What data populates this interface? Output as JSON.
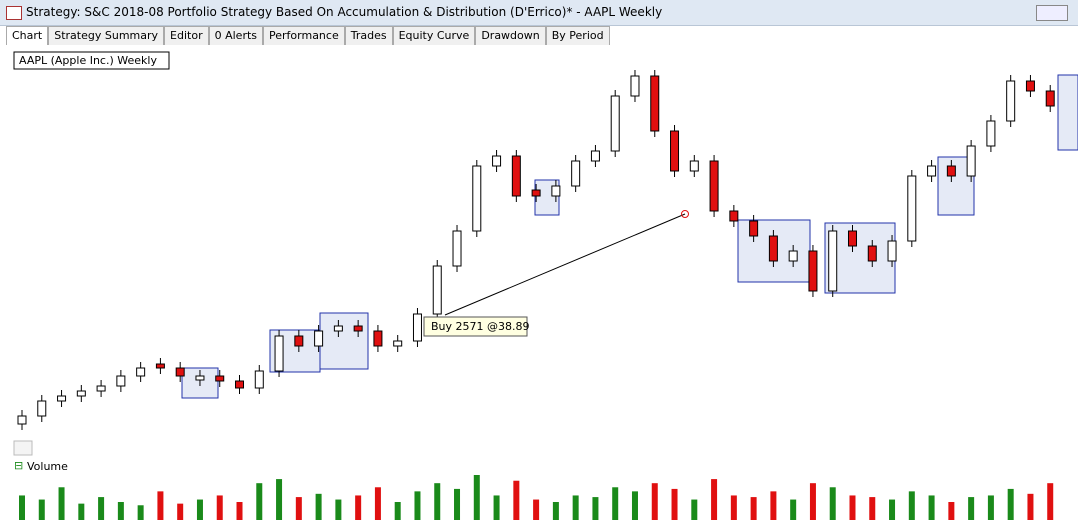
{
  "window": {
    "title": "Strategy: S&C 2018-08 Portfolio Strategy Based On Accumulation & Distribution (D'Errico)* - AAPL Weekly"
  },
  "tabs": [
    "Chart",
    "Strategy Summary",
    "Editor",
    "0 Alerts",
    "Performance",
    "Trades",
    "Equity Curve",
    "Drawdown",
    "By Period"
  ],
  "chart_data": [
    {
      "type": "candlestick",
      "title": "AAPL (Apple Inc.) Weekly",
      "annotation": "Buy 2571 @38.89",
      "up_color": "#ffffff",
      "down_color": "#e01010",
      "open": [
        27.6,
        28.4,
        29.9,
        30.4,
        30.9,
        31.4,
        32.4,
        33.6,
        33.2,
        32.0,
        32.4,
        31.9,
        31.2,
        32.9,
        36.4,
        35.4,
        36.9,
        37.4,
        36.9,
        35.4,
        35.9,
        38.6,
        43.4,
        46.9,
        53.4,
        54.4,
        51.0,
        50.4,
        51.4,
        53.9,
        54.9,
        60.4,
        62.4,
        56.9,
        52.9,
        53.9,
        48.9,
        47.9,
        46.4,
        43.9,
        44.9,
        40.9,
        46.9,
        45.4,
        43.9,
        45.9,
        52.4,
        53.4,
        52.4,
        55.4,
        57.9,
        61.9,
        60.9
      ],
      "high": [
        29.0,
        30.5,
        31.0,
        31.5,
        32.0,
        33.0,
        33.8,
        34.2,
        33.8,
        33.0,
        33.0,
        32.5,
        33.5,
        37.0,
        37.0,
        37.5,
        38.0,
        38.0,
        37.5,
        36.5,
        39.2,
        44.0,
        47.5,
        54.0,
        55.0,
        55.0,
        51.6,
        52.0,
        54.5,
        55.5,
        61.0,
        63.0,
        63.0,
        57.5,
        54.5,
        54.5,
        49.5,
        48.5,
        47.0,
        45.5,
        45.5,
        47.5,
        47.5,
        46.0,
        46.5,
        53.0,
        54.0,
        54.0,
        56.0,
        58.5,
        62.5,
        62.5,
        61.5
      ],
      "low": [
        27.0,
        27.8,
        29.3,
        29.8,
        30.3,
        30.8,
        31.8,
        32.6,
        31.8,
        31.4,
        31.3,
        30.6,
        30.6,
        32.3,
        34.8,
        34.8,
        36.3,
        36.3,
        34.8,
        34.8,
        35.3,
        38.0,
        42.8,
        46.3,
        52.8,
        49.8,
        49.8,
        49.8,
        50.8,
        53.3,
        54.3,
        59.8,
        56.3,
        52.3,
        52.3,
        48.3,
        47.3,
        45.8,
        43.3,
        43.3,
        40.3,
        40.3,
        44.8,
        43.3,
        43.3,
        45.3,
        51.8,
        51.8,
        51.8,
        54.8,
        57.3,
        60.3,
        58.8
      ],
      "close": [
        28.4,
        29.9,
        30.4,
        30.9,
        31.4,
        32.4,
        33.2,
        33.2,
        32.4,
        32.4,
        31.9,
        31.2,
        32.9,
        36.4,
        35.4,
        36.9,
        37.4,
        36.9,
        35.4,
        35.9,
        38.6,
        43.4,
        46.9,
        53.4,
        54.4,
        50.4,
        50.4,
        51.4,
        53.9,
        54.9,
        60.4,
        62.4,
        56.9,
        52.9,
        53.9,
        48.9,
        47.9,
        46.4,
        43.9,
        44.9,
        40.9,
        46.9,
        45.4,
        43.9,
        45.9,
        52.4,
        53.4,
        52.4,
        55.4,
        57.9,
        61.9,
        60.9,
        59.4
      ]
    },
    {
      "type": "bar",
      "title": "Volume",
      "up_color": "#1a8a1a",
      "down_color": "#e01010",
      "values": [
        30,
        25,
        40,
        20,
        28,
        22,
        18,
        35,
        20,
        25,
        30,
        22,
        45,
        50,
        28,
        32,
        25,
        30,
        40,
        22,
        35,
        45,
        38,
        55,
        30,
        48,
        25,
        22,
        30,
        28,
        40,
        35,
        45,
        38,
        25,
        50,
        30,
        28,
        35,
        25,
        45,
        40,
        30,
        28,
        25,
        35,
        30,
        22,
        28,
        30,
        38,
        32,
        45
      ]
    }
  ]
}
